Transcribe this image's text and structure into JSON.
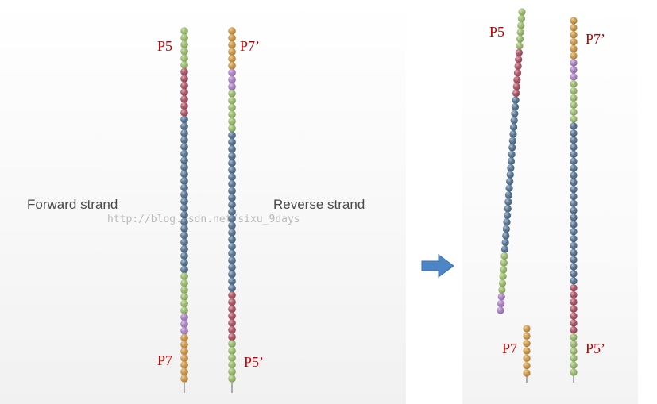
{
  "colors": {
    "orange": "#c8913e",
    "green": "#94b665",
    "purple": "#a57bbf",
    "red": "#a84b5d",
    "blue": "#4d6d8c",
    "label": "#c00000",
    "arrow": "#4d86c6"
  },
  "labels": {
    "forward": "Forward strand",
    "reverse": "Reverse strand",
    "watermark": "http://blog.csdn.net/sixu_9days",
    "p5": "P5",
    "p7": "P7",
    "p7p": "P7’",
    "p5p": "P5’"
  },
  "strands": [
    {
      "id": "forward",
      "segments": [
        [
          "green",
          6
        ],
        [
          "red",
          7
        ],
        [
          "blue",
          23
        ],
        [
          "green",
          6
        ],
        [
          "purple",
          3
        ],
        [
          "orange",
          7
        ]
      ]
    },
    {
      "id": "reverse",
      "segments": [
        [
          "orange",
          6
        ],
        [
          "purple",
          3
        ],
        [
          "green",
          6
        ],
        [
          "blue",
          23
        ],
        [
          "red",
          7
        ],
        [
          "green",
          6
        ]
      ]
    },
    {
      "id": "cleaved-forward",
      "segments": [
        [
          "green",
          6
        ],
        [
          "red",
          7
        ],
        [
          "blue",
          23
        ],
        [
          "green",
          6
        ],
        [
          "purple",
          3
        ]
      ]
    },
    {
      "id": "cleaved-p7",
      "segments": [
        [
          "orange",
          7
        ]
      ]
    },
    {
      "id": "reverse-right",
      "segments": [
        [
          "orange",
          6
        ],
        [
          "purple",
          3
        ],
        [
          "green",
          6
        ],
        [
          "blue",
          23
        ],
        [
          "red",
          7
        ],
        [
          "green",
          6
        ]
      ]
    }
  ]
}
